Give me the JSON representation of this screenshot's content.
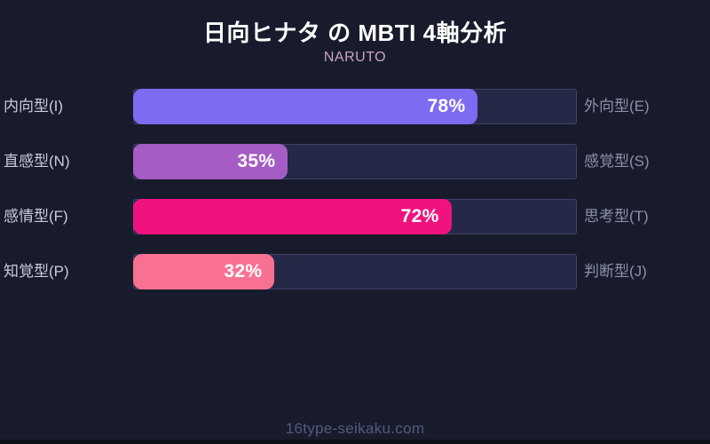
{
  "header": {
    "title": "日向ヒナタ の MBTI 4軸分析",
    "subtitle": "NARUTO"
  },
  "footer": {
    "text": "16type-seikaku.com"
  },
  "chart_data": {
    "type": "bar",
    "orientation": "horizontal",
    "title": "日向ヒナタ の MBTI 4軸分析",
    "subtitle": "NARUTO",
    "xlim": [
      0,
      100
    ],
    "unit": "%",
    "grid": false,
    "legend": "none",
    "rows": [
      {
        "axis": "I-E",
        "left_label": "内向型(I)",
        "right_label": "外向型(E)",
        "value": 78,
        "display": "78%",
        "color": "#7d6bf2"
      },
      {
        "axis": "N-S",
        "left_label": "直感型(N)",
        "right_label": "感覚型(S)",
        "value": 35,
        "display": "35%",
        "color": "#a55cc5"
      },
      {
        "axis": "F-T",
        "left_label": "感情型(F)",
        "right_label": "思考型(T)",
        "value": 72,
        "display": "72%",
        "color": "#f0137f"
      },
      {
        "axis": "P-J",
        "left_label": "知覚型(P)",
        "right_label": "判断型(J)",
        "value": 32,
        "display": "32%",
        "color": "#f97192"
      }
    ],
    "layout": {
      "background_color": "#181b2c",
      "track_color": "#252947",
      "track_border_color": "#3e4366",
      "title_color": "#ffffff",
      "subtitle_color": "#c9a2c3",
      "left_label_color": "#c9ccda",
      "right_label_color": "#8d91a8",
      "value_label_color": "#ffffff",
      "watermark_color": "#545a7a"
    }
  }
}
